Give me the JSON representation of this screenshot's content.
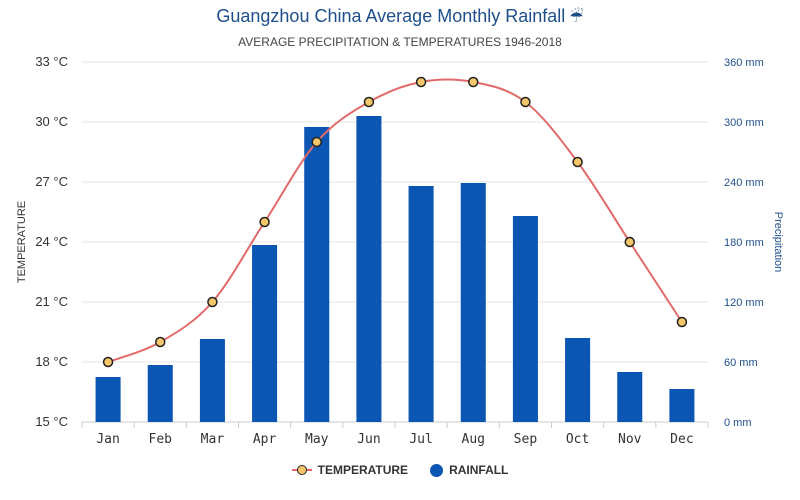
{
  "header": {
    "title": "Guangzhou China Average Monthly Rainfall",
    "title_icon": "umbrella-rain-icon",
    "subtitle": "AVERAGE PRECIPITATION & TEMPERATURES 1946-2018"
  },
  "legend": {
    "temperature": "TEMPERATURE",
    "rainfall": "RAINFALL"
  },
  "colors": {
    "bar": "#0b56b3",
    "line": "#e26a6a",
    "marker": "#f5c66a",
    "title": "#1f4f8a",
    "right_axis": "#1f4f8a"
  },
  "chart_data": {
    "type": "bar",
    "categories": [
      "Jan",
      "Feb",
      "Mar",
      "Apr",
      "May",
      "Jun",
      "Jul",
      "Aug",
      "Sep",
      "Oct",
      "Nov",
      "Dec"
    ],
    "series": [
      {
        "name": "RAINFALL",
        "type": "bar",
        "axis": "right",
        "values": [
          45,
          57,
          83,
          177,
          295,
          306,
          236,
          239,
          206,
          84,
          50,
          33
        ]
      },
      {
        "name": "TEMPERATURE",
        "type": "line",
        "axis": "left",
        "values": [
          18,
          19,
          21,
          25,
          29,
          31,
          32,
          32,
          31,
          28,
          24,
          20
        ]
      }
    ],
    "ylabel": "TEMPERATURE",
    "y2label": "Precipitation",
    "ylim": [
      15,
      33
    ],
    "y2lim": [
      0,
      360
    ],
    "yticks": [
      "15 °C",
      "18 °C",
      "21 °C",
      "24 °C",
      "27 °C",
      "30 °C",
      "33 °C"
    ],
    "y2ticks": [
      "0 mm",
      "60 mm",
      "120 mm",
      "180 mm",
      "240 mm",
      "300 mm",
      "360 mm"
    ],
    "grid": true,
    "legend_position": "bottom"
  }
}
